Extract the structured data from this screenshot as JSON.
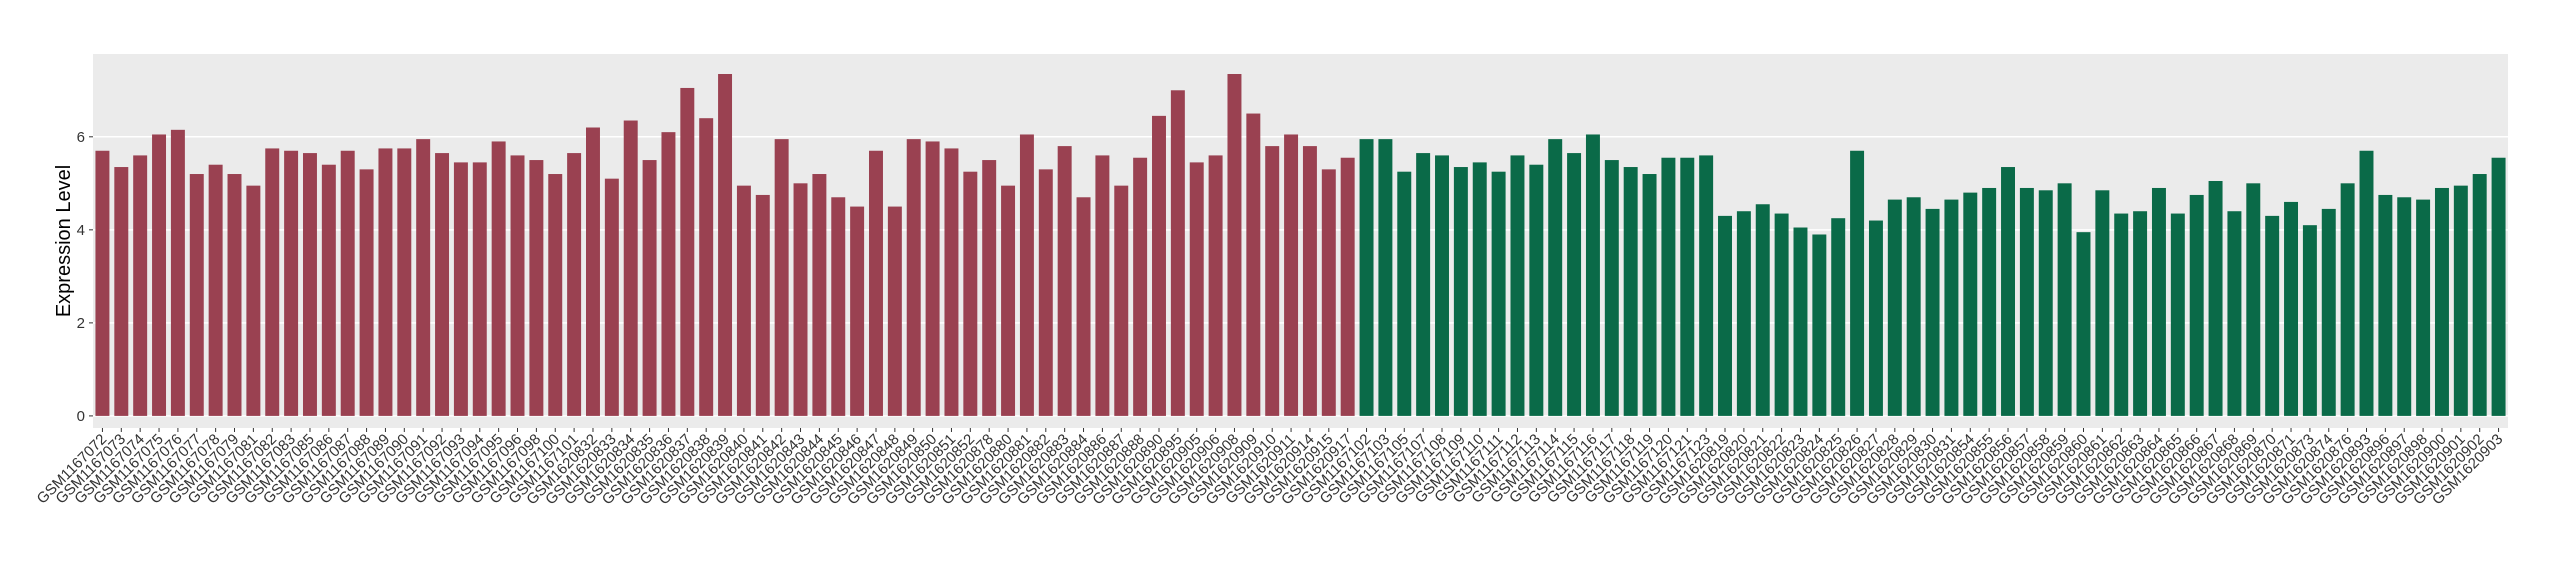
{
  "chart_data": {
    "type": "bar",
    "y_label": "Expression Level",
    "categories": [
      "GSM1167072",
      "GSM1167073",
      "GSM1167074",
      "GSM1167075",
      "GSM1167076",
      "GSM1167077",
      "GSM1167078",
      "GSM1167079",
      "GSM1167081",
      "GSM1167082",
      "GSM1167083",
      "GSM1167085",
      "GSM1167086",
      "GSM1167087",
      "GSM1167088",
      "GSM1167089",
      "GSM1167090",
      "GSM1167091",
      "GSM1167092",
      "GSM1167093",
      "GSM1167094",
      "GSM1167095",
      "GSM1167096",
      "GSM1167098",
      "GSM1167100",
      "GSM1167101",
      "GSM1620832",
      "GSM1620833",
      "GSM1620834",
      "GSM1620835",
      "GSM1620836",
      "GSM1620837",
      "GSM1620838",
      "GSM1620839",
      "GSM1620840",
      "GSM1620841",
      "GSM1620842",
      "GSM1620843",
      "GSM1620844",
      "GSM1620845",
      "GSM1620846",
      "GSM1620847",
      "GSM1620848",
      "GSM1620849",
      "GSM1620850",
      "GSM1620851",
      "GSM1620852",
      "GSM1620878",
      "GSM1620880",
      "GSM1620881",
      "GSM1620882",
      "GSM1620883",
      "GSM1620884",
      "GSM1620886",
      "GSM1620887",
      "GSM1620888",
      "GSM1620890",
      "GSM1620895",
      "GSM1620905",
      "GSM1620906",
      "GSM1620908",
      "GSM1620909",
      "GSM1620910",
      "GSM1620911",
      "GSM1620914",
      "GSM1620915",
      "GSM1620917",
      "GSM1167102",
      "GSM1167103",
      "GSM1167105",
      "GSM1167107",
      "GSM1167108",
      "GSM1167109",
      "GSM1167110",
      "GSM1167111",
      "GSM1167112",
      "GSM1167113",
      "GSM1167114",
      "GSM1167115",
      "GSM1167116",
      "GSM1167117",
      "GSM1167118",
      "GSM1167119",
      "GSM1167120",
      "GSM1167121",
      "GSM1167123",
      "GSM1620819",
      "GSM1620820",
      "GSM1620821",
      "GSM1620822",
      "GSM1620823",
      "GSM1620824",
      "GSM1620825",
      "GSM1620826",
      "GSM1620827",
      "GSM1620828",
      "GSM1620829",
      "GSM1620830",
      "GSM1620831",
      "GSM1620854",
      "GSM1620855",
      "GSM1620856",
      "GSM1620857",
      "GSM1620858",
      "GSM1620859",
      "GSM1620860",
      "GSM1620861",
      "GSM1620862",
      "GSM1620863",
      "GSM1620864",
      "GSM1620865",
      "GSM1620866",
      "GSM1620867",
      "GSM1620868",
      "GSM1620869",
      "GSM1620870",
      "GSM1620871",
      "GSM1620873",
      "GSM1620874",
      "GSM1620876",
      "GSM1620893",
      "GSM1620896",
      "GSM1620897",
      "GSM1620898",
      "GSM1620900",
      "GSM1620901",
      "GSM1620902",
      "GSM1620903"
    ],
    "series": [
      {
        "color": "#9a4151",
        "values": [
          5.7,
          5.35,
          5.6,
          6.05,
          6.15,
          5.2,
          5.4,
          5.2,
          4.95,
          5.75,
          5.7,
          5.65,
          5.4,
          5.7,
          5.3,
          5.75,
          5.75,
          5.95,
          5.65,
          5.45,
          5.45,
          5.9,
          5.6,
          5.5,
          5.2,
          5.65,
          6.2,
          5.1,
          6.35,
          5.5,
          6.1,
          7.05,
          6.4,
          7.35,
          4.95,
          4.75,
          5.95,
          5.0,
          5.2,
          4.7,
          4.5,
          5.7,
          4.5,
          5.95,
          5.9,
          5.75,
          5.25,
          5.5,
          4.95,
          6.05,
          5.3,
          5.8,
          4.7,
          5.6,
          4.95,
          5.55,
          6.45,
          7.0,
          5.45,
          5.6,
          7.35,
          6.5,
          5.8,
          6.05,
          5.8,
          5.3,
          5.55,
          null,
          null,
          null,
          null,
          null,
          null,
          null,
          null,
          null,
          null,
          null,
          null,
          null,
          null,
          null,
          null,
          null,
          null,
          null,
          null,
          null,
          null,
          null,
          null,
          null,
          null,
          null,
          null,
          null,
          null,
          null,
          null,
          null,
          null,
          null,
          null,
          null,
          null,
          null,
          null,
          null,
          null,
          null,
          null,
          null,
          null,
          null,
          null,
          null,
          null,
          null,
          null,
          null,
          null,
          null,
          null,
          null,
          null,
          null,
          null,
          null
        ]
      },
      {
        "color": "#0a6a48",
        "values": [
          null,
          null,
          null,
          null,
          null,
          null,
          null,
          null,
          null,
          null,
          null,
          null,
          null,
          null,
          null,
          null,
          null,
          null,
          null,
          null,
          null,
          null,
          null,
          null,
          null,
          null,
          null,
          null,
          null,
          null,
          null,
          null,
          null,
          null,
          null,
          null,
          null,
          null,
          null,
          null,
          null,
          null,
          null,
          null,
          null,
          null,
          null,
          null,
          null,
          null,
          null,
          null,
          null,
          null,
          null,
          null,
          null,
          null,
          null,
          null,
          null,
          null,
          null,
          null,
          null,
          null,
          null,
          5.95,
          5.95,
          5.25,
          5.65,
          5.6,
          5.35,
          5.45,
          5.25,
          5.6,
          5.4,
          5.95,
          5.65,
          6.05,
          5.5,
          5.35,
          5.2,
          5.55,
          5.55,
          5.6,
          4.3,
          4.4,
          4.55,
          4.35,
          4.05,
          3.9,
          4.25,
          5.7,
          4.2,
          4.65,
          4.7,
          4.45,
          4.65,
          4.8,
          4.9,
          5.35,
          4.9,
          4.85,
          5.0,
          3.95,
          4.85,
          4.35,
          4.4,
          4.9,
          4.35,
          4.75,
          5.05,
          4.4,
          5.0,
          4.3,
          4.6,
          4.1,
          4.45,
          5.0,
          5.7,
          4.75,
          4.7,
          4.65,
          4.9,
          4.95,
          5.2,
          5.55
        ]
      }
    ],
    "ylim": [
      -0.26,
      7.78
    ],
    "yticks": [
      0,
      2,
      4,
      6
    ],
    "grid": true
  }
}
